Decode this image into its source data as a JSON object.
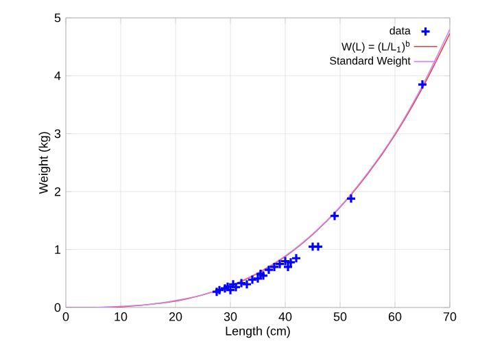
{
  "chart_data": {
    "type": "scatter",
    "xlabel": "Length (cm)",
    "ylabel": "Weight (kg)",
    "xlim": [
      0,
      70
    ],
    "ylim": [
      0,
      5
    ],
    "xticks": [
      0,
      10,
      20,
      30,
      40,
      50,
      60,
      70
    ],
    "yticks": [
      0,
      1,
      2,
      3,
      4,
      5
    ],
    "grid": true,
    "legend": "top right",
    "series": [
      {
        "name": "data",
        "marker": "cross",
        "color": "#0000ff",
        "x": [
          27.5,
          28,
          29,
          29.5,
          30,
          30.5,
          31,
          32,
          33,
          34,
          35,
          35.5,
          36,
          37,
          38,
          39,
          40,
          40.5,
          41,
          42,
          45,
          46,
          49,
          52,
          65
        ],
        "values": [
          0.27,
          0.3,
          0.33,
          0.36,
          0.3,
          0.4,
          0.35,
          0.42,
          0.4,
          0.48,
          0.5,
          0.58,
          0.55,
          0.65,
          0.7,
          0.75,
          0.8,
          0.7,
          0.78,
          0.85,
          1.05,
          1.05,
          1.58,
          1.88,
          3.85
        ]
      },
      {
        "name": "W(L) = (L/L$_{1}$)$^{b}$",
        "type": "line",
        "marker": "none",
        "color": "#e0403a",
        "x": [
          0,
          5,
          10,
          15,
          20,
          25,
          30,
          35,
          40,
          45,
          50,
          55,
          60,
          65,
          70
        ],
        "values": [
          0,
          0,
          0.01,
          0.05,
          0.11,
          0.22,
          0.37,
          0.59,
          0.88,
          1.26,
          1.73,
          2.3,
          2.98,
          3.79,
          4.73
        ]
      },
      {
        "name": "Standard Weight",
        "type": "line",
        "marker": "none",
        "color": "#cc88ee",
        "x": [
          0,
          5,
          10,
          15,
          20,
          25,
          30,
          35,
          40,
          45,
          50,
          55,
          60,
          65,
          70
        ],
        "values": [
          0,
          0,
          0.02,
          0.05,
          0.12,
          0.22,
          0.38,
          0.6,
          0.89,
          1.27,
          1.74,
          2.32,
          3.0,
          3.83,
          4.8
        ]
      }
    ]
  }
}
